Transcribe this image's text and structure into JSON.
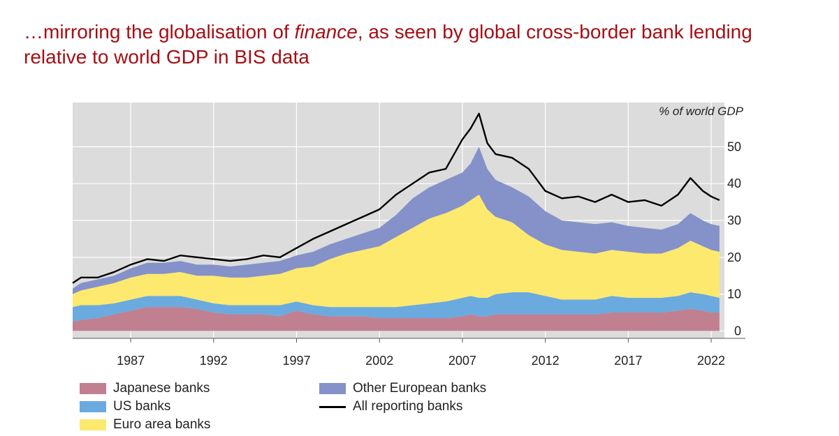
{
  "title": {
    "before": "…mirroring the globalisation of ",
    "emphasis": "finance",
    "after": ", as seen by global cross-border bank lending relative to world GDP in BIS data"
  },
  "chart_data": {
    "type": "area",
    "unit_label": "% of world GDP",
    "xlim": [
      1983.5,
      2022.8
    ],
    "ylim": [
      -2,
      62
    ],
    "yticks": [
      0,
      10,
      20,
      30,
      40,
      50
    ],
    "xticks": [
      1987,
      1992,
      1997,
      2002,
      2007,
      2012,
      2017,
      2022
    ],
    "grid": true,
    "legend_position": "bottom-left",
    "stacked": true,
    "x": [
      1983.5,
      1984,
      1985,
      1986,
      1987,
      1988,
      1989,
      1990,
      1991,
      1992,
      1993,
      1994,
      1995,
      1996,
      1997,
      1998,
      1999,
      2000,
      2001,
      2002,
      2003,
      2004,
      2005,
      2006,
      2007,
      2007.5,
      2008,
      2008.5,
      2009,
      2010,
      2011,
      2012,
      2013,
      2014,
      2015,
      2016,
      2017,
      2018,
      2019,
      2020,
      2020.75,
      2021.5,
      2022,
      2022.5
    ],
    "series": [
      {
        "name": "Japanese banks",
        "color": "#c08090",
        "values": [
          2.5,
          3,
          3.5,
          4.5,
          5.5,
          6.5,
          6.5,
          6.5,
          6,
          5,
          4.5,
          4.5,
          4.5,
          4,
          5.5,
          4.5,
          4,
          4,
          4,
          3.5,
          3.5,
          3.5,
          3.5,
          3.5,
          4,
          4.5,
          4,
          4,
          4.5,
          4.5,
          4.5,
          4.5,
          4.5,
          4.5,
          4.5,
          5,
          5,
          5,
          5,
          5.5,
          6,
          5.5,
          5,
          5
        ]
      },
      {
        "name": "US banks",
        "color": "#6aaadf",
        "values": [
          4,
          4,
          3.5,
          3,
          3,
          3,
          3,
          3,
          2.5,
          2.5,
          2.5,
          2.5,
          2.5,
          3,
          2.5,
          2.5,
          2.5,
          2.5,
          2.5,
          3,
          3,
          3.5,
          4,
          4.5,
          5,
          5,
          5,
          5,
          5.5,
          6,
          6,
          5,
          4,
          4,
          4,
          4.5,
          4,
          4,
          4,
          4,
          4.5,
          4.5,
          4.5,
          4
        ]
      },
      {
        "name": "Euro area banks",
        "color": "#fde96e",
        "values": [
          3.5,
          4,
          5,
          5.5,
          6,
          6,
          6,
          6.5,
          6.5,
          7.5,
          7.5,
          7.5,
          8,
          8.5,
          9,
          10.5,
          13,
          14.5,
          15.5,
          16.5,
          19,
          21,
          23,
          24,
          25,
          26,
          28,
          24,
          21,
          19,
          15.5,
          14,
          13.5,
          13,
          12.5,
          12.5,
          12.5,
          12,
          12,
          13,
          14,
          13,
          12.5,
          12.5
        ]
      },
      {
        "name": "Other European banks",
        "color": "#8591c9",
        "values": [
          1.5,
          2,
          2,
          2,
          2.5,
          3,
          3,
          3,
          3,
          3,
          3,
          3.5,
          3.5,
          3.5,
          3.5,
          4,
          4,
          4,
          4.5,
          5,
          6,
          8,
          8.5,
          9,
          9,
          10,
          13,
          11,
          10,
          9.5,
          10.5,
          9,
          8,
          8,
          8,
          7.5,
          7,
          7,
          6.5,
          6.5,
          7.5,
          7,
          7,
          7
        ]
      }
    ],
    "total": {
      "name": "All reporting banks",
      "color": "#000000",
      "values": [
        13,
        14.5,
        14.5,
        16,
        18,
        19.5,
        19,
        20.5,
        20,
        19.5,
        19,
        19.5,
        20.5,
        20,
        22.5,
        25,
        27,
        29,
        31,
        33,
        37,
        40,
        43,
        44,
        52,
        55,
        59,
        51,
        48,
        47,
        44,
        38,
        36,
        36.5,
        35,
        37,
        35,
        35.5,
        34,
        37,
        41.5,
        38,
        36.5,
        35.5
      ]
    }
  },
  "legend": [
    {
      "label": "Japanese banks",
      "color": "#c08090",
      "kind": "swatch"
    },
    {
      "label": "US banks",
      "color": "#6aaadf",
      "kind": "swatch"
    },
    {
      "label": "Euro area banks",
      "color": "#fde96e",
      "kind": "swatch"
    },
    {
      "label": "Other European banks",
      "color": "#8591c9",
      "kind": "swatch"
    },
    {
      "label": "All reporting banks",
      "color": "#000000",
      "kind": "line"
    }
  ]
}
